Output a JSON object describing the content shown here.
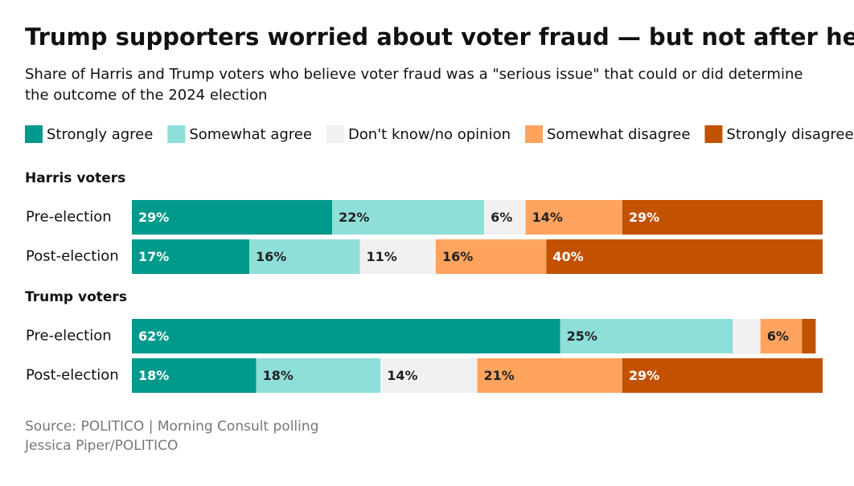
{
  "chart_data": {
    "type": "stacked-bar",
    "title": "Trump supporters worried about voter fraud — but not after he won",
    "subtitle": [
      "Share of Harris and Trump voters who believe voter fraud was a \"serious issue\" that could or did determine",
      "the outcome of the 2024 election"
    ],
    "groups": [
      {
        "name": "Harris voters",
        "categories": [
          "Pre-election",
          "Post-election"
        ]
      },
      {
        "name": "Trump voters",
        "categories": [
          "Pre-election",
          "Post-election"
        ]
      }
    ],
    "xlim": [
      0,
      100
    ],
    "series": [
      {
        "name": "Strongly agree",
        "color": "#009a8c",
        "values": [
          29,
          17,
          62,
          18
        ],
        "value_labels": [
          "29%",
          "17%",
          "62%",
          "18%"
        ]
      },
      {
        "name": "Somewhat agree",
        "color": "#8fdfd9",
        "values": [
          22,
          16,
          25,
          18
        ],
        "value_labels": [
          "22%",
          "16%",
          "25%",
          "18%"
        ]
      },
      {
        "name": "Don't know/no opinion",
        "color": "#f1f1f1",
        "values": [
          6,
          11,
          4,
          14
        ],
        "value_labels": [
          "6%",
          "11%",
          null,
          "14%"
        ]
      },
      {
        "name": "Somewhat disagree",
        "color": "#ffa45e",
        "values": [
          14,
          16,
          6,
          21
        ],
        "value_labels": [
          "14%",
          "16%",
          "6%",
          "21%"
        ]
      },
      {
        "name": "Strongly disagree",
        "color": "#c25100",
        "values": [
          29,
          40,
          2,
          29
        ],
        "value_labels": [
          "29%",
          "40%",
          null,
          "29%"
        ]
      }
    ],
    "source": [
      "Source: POLITICO | Morning Consult polling",
      "Jessica Piper/POLITICO"
    ]
  }
}
